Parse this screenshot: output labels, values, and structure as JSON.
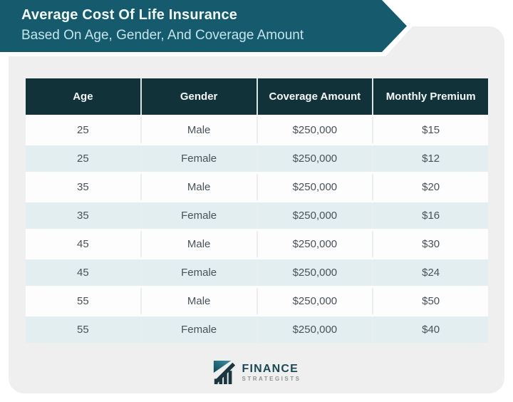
{
  "banner": {
    "title": "Average Cost Of Life Insurance",
    "subtitle": "Based On Age, Gender, And Coverage Amount"
  },
  "chart_data": {
    "type": "table",
    "title": "Average Cost Of Life Insurance",
    "subtitle": "Based On Age, Gender, And Coverage Amount",
    "columns": [
      "Age",
      "Gender",
      "Coverage Amount",
      "Monthly Premium"
    ],
    "rows": [
      [
        "25",
        "Male",
        "$250,000",
        "$15"
      ],
      [
        "25",
        "Female",
        "$250,000",
        "$12"
      ],
      [
        "35",
        "Male",
        "$250,000",
        "$20"
      ],
      [
        "35",
        "Female",
        "$250,000",
        "$16"
      ],
      [
        "45",
        "Male",
        "$250,000",
        "$30"
      ],
      [
        "45",
        "Female",
        "$250,000",
        "$24"
      ],
      [
        "55",
        "Male",
        "$250,000",
        "$50"
      ],
      [
        "55",
        "Female",
        "$250,000",
        "$40"
      ]
    ]
  },
  "logo": {
    "brand_top": "FINANCE",
    "brand_bottom": "STRATEGISTS"
  },
  "colors": {
    "banner_teal": "#155b6d",
    "header_dark": "#12323a",
    "stripe_row": "#e3eef0",
    "card_bg": "#efefef",
    "body_text": "#49525a",
    "logo_navy": "#1a4a57"
  }
}
